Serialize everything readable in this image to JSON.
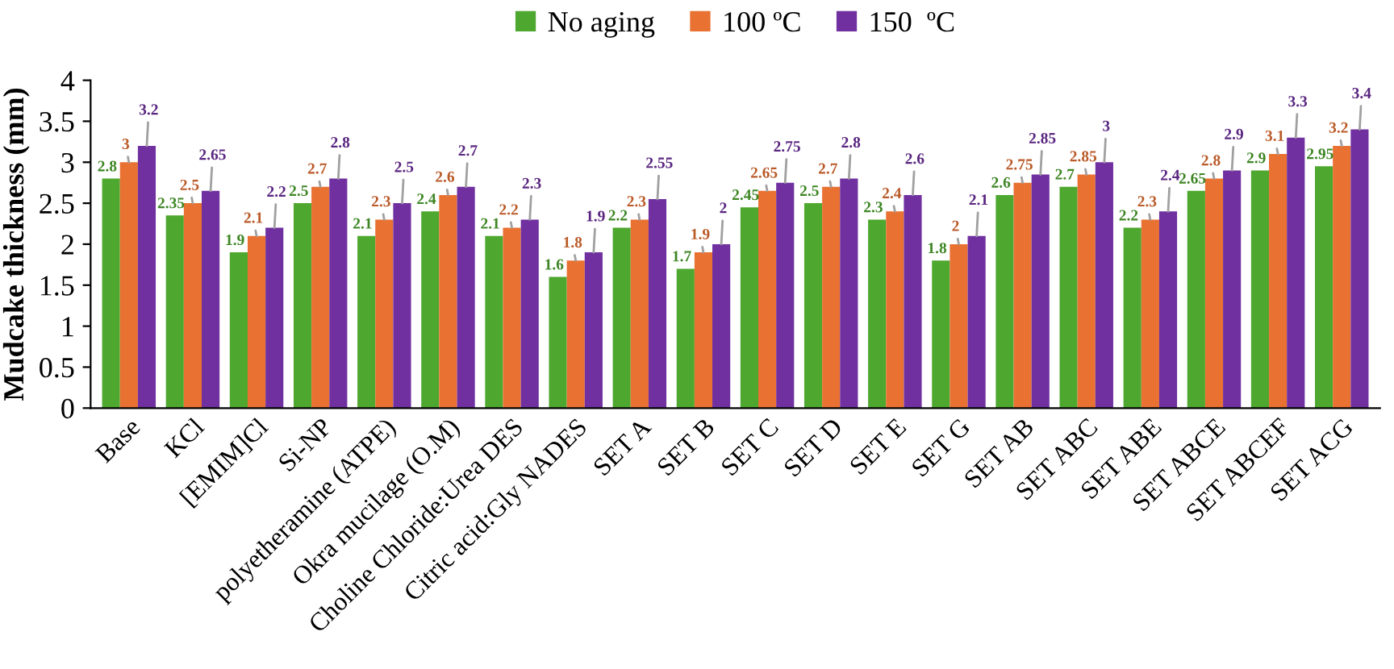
{
  "chart_data": {
    "type": "bar",
    "ylabel": "Mudcake thickness (mm)",
    "categories": [
      "Base",
      "KCl",
      "[EMIM]Cl",
      "Si-NP",
      "polyetheramine (ATPE)",
      "Okra mucilage (O.M)",
      "Choline Chloride:Urea DES",
      "Citric acid:Gly NADES",
      "SET A",
      "SET B",
      "SET C",
      "SET D",
      "SET E",
      "SET G",
      "SET AB",
      "SET ABC",
      "SET ABE",
      "SET ABCE",
      "SET ABCEF",
      "SET ACG"
    ],
    "series": [
      {
        "name": "No aging",
        "color": "#4ea72e",
        "values": [
          2.8,
          2.35,
          1.9,
          2.5,
          2.1,
          2.4,
          2.1,
          1.6,
          2.2,
          1.7,
          2.45,
          2.5,
          2.3,
          1.8,
          2.6,
          2.7,
          2.2,
          2.65,
          2.9,
          2.95
        ]
      },
      {
        "name": "100 ºC",
        "color": "#e97132",
        "values": [
          3,
          2.5,
          2.1,
          2.7,
          2.3,
          2.6,
          2.2,
          1.8,
          2.3,
          1.9,
          2.65,
          2.7,
          2.4,
          2,
          2.75,
          2.85,
          2.3,
          2.8,
          3.1,
          3.2
        ]
      },
      {
        "name": "150  ºC",
        "color": "#7030a0",
        "values": [
          3.2,
          2.65,
          2.2,
          2.8,
          2.5,
          2.7,
          2.3,
          1.9,
          2.55,
          2,
          2.75,
          2.8,
          2.6,
          2.1,
          2.85,
          3,
          2.4,
          2.9,
          3.3,
          3.4
        ]
      }
    ],
    "ylim": [
      0,
      4
    ],
    "yticks": [
      0,
      0.5,
      1,
      1.5,
      2,
      2.5,
      3,
      3.5,
      4
    ],
    "grid": false,
    "legend": "top",
    "data_labels": true
  }
}
